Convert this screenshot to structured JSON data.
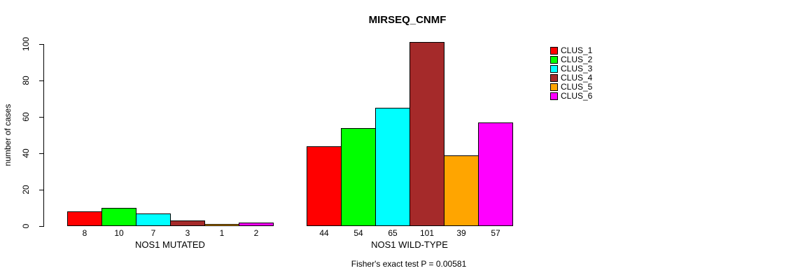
{
  "chart_data": {
    "type": "bar",
    "title": "MIRSEQ_CNMF",
    "ylabel": "number of cases",
    "xlabel": "",
    "ylim": [
      0,
      100
    ],
    "yticks": [
      0,
      20,
      40,
      60,
      80,
      100
    ],
    "grid": false,
    "legend_position": "right",
    "series_labels": [
      "CLUS_1",
      "CLUS_2",
      "CLUS_3",
      "CLUS_4",
      "CLUS_5",
      "CLUS_6"
    ],
    "palette": [
      "#FF0000",
      "#00FF00",
      "#00FFFF",
      "#A52A2A",
      "#FFA500",
      "#FF00FF"
    ],
    "groups": [
      {
        "label": "NOS1 MUTATED",
        "values": [
          8,
          10,
          7,
          3,
          1,
          2
        ]
      },
      {
        "label": "NOS1 WILD-TYPE",
        "values": [
          44,
          54,
          65,
          101,
          39,
          57
        ]
      }
    ],
    "annotation": "Fisher's exact test P = 0.00581"
  }
}
